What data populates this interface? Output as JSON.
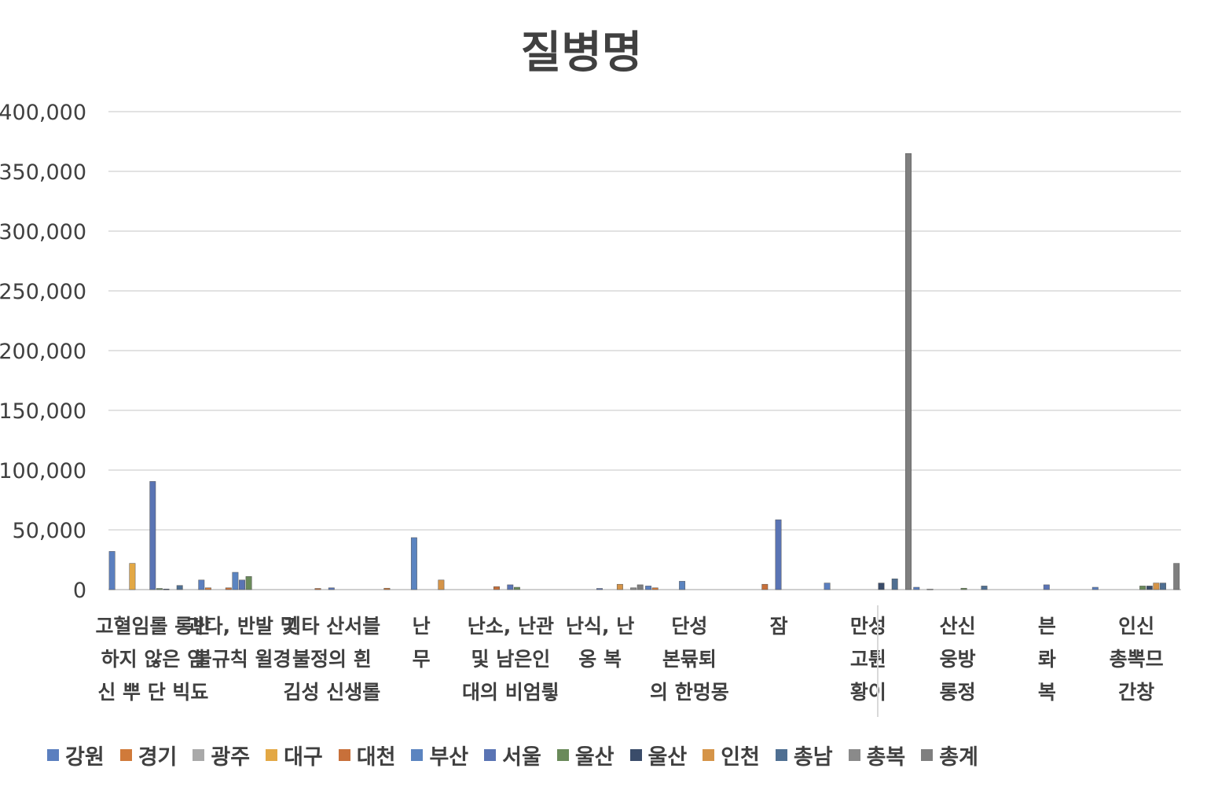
{
  "chart_data": {
    "type": "bar",
    "title": "질병명",
    "xlabel": "",
    "ylabel": "",
    "ylim": [
      0,
      400000
    ],
    "yticks": [
      "0",
      "50,000",
      "100,000",
      "150,000",
      "200,000",
      "250,000",
      "300,000",
      "350,000",
      "400,000"
    ],
    "grid": true,
    "legend_position": "bottom",
    "categories": [
      [
        "고혈임롤 롱반",
        "하지 않은 임",
        "신 뿌 단 빅됴"
      ],
      [
        "과다, 반발 및",
        "불규칙 윌경"
      ],
      [
        "기타 산서블",
        "불정의 흰",
        "김성 신생롤"
      ],
      [
        "난",
        "무"
      ],
      [
        "난소, 난관",
        "및 남은인",
        "대의 비엄릫"
      ],
      [
        "난식, 난",
        "옹  복"
      ],
      [
        "단성",
        "본뮦퇴",
        "의 한멍몽"
      ],
      [
        "잠"
      ],
      [
        "만성",
        "고튄",
        "황이"
      ],
      [
        "산신",
        "웅방",
        "롱정"
      ],
      [
        "븐",
        "롸",
        "복"
      ],
      [
        "인신",
        "총뽁므",
        "간창"
      ]
    ],
    "series": [
      {
        "name": "강원",
        "color": "#5b7fbf",
        "values": [
          32000,
          8000,
          0,
          0,
          0,
          0,
          3000,
          0,
          5500,
          2000,
          0,
          2000
        ]
      },
      {
        "name": "경기",
        "color": "#d07a3a",
        "values": [
          0,
          1500,
          0,
          1200,
          0,
          0,
          1500,
          0,
          0,
          0,
          0,
          0
        ]
      },
      {
        "name": "광주",
        "color": "#a9a9a9",
        "values": [
          0,
          0,
          0,
          0,
          0,
          0,
          0,
          0,
          0,
          500,
          0,
          0
        ]
      },
      {
        "name": "대구",
        "color": "#e3a845",
        "values": [
          22000,
          0,
          0,
          0,
          0,
          0,
          0,
          0,
          0,
          0,
          0,
          0
        ]
      },
      {
        "name": "대천",
        "color": "#c8703a",
        "values": [
          0,
          1500,
          1000,
          0,
          2500,
          0,
          0,
          4500,
          0,
          0,
          0,
          0
        ]
      },
      {
        "name": "부산",
        "color": "#5b84c0",
        "values": [
          0,
          14500,
          0,
          43500,
          0,
          0,
          7000,
          0,
          0,
          0,
          0,
          0
        ]
      },
      {
        "name": "서울",
        "color": "#5a74b4",
        "values": [
          90500,
          8000,
          1500,
          0,
          4000,
          1000,
          0,
          58500,
          0,
          0,
          4000,
          0
        ]
      },
      {
        "name": "울산",
        "color": "#6a8a5a",
        "values": [
          1000,
          11000,
          0,
          0,
          2000,
          0,
          0,
          0,
          0,
          1200,
          0,
          3000
        ]
      },
      {
        "name": "울산",
        "color": "#3a4c6a",
        "values": [
          500,
          0,
          0,
          0,
          0,
          0,
          0,
          0,
          5500,
          0,
          0,
          3000
        ]
      },
      {
        "name": "인천",
        "color": "#d59448",
        "values": [
          0,
          0,
          0,
          8000,
          0,
          4500,
          0,
          0,
          0,
          0,
          0,
          5500
        ]
      },
      {
        "name": "총남",
        "color": "#4f6f92",
        "values": [
          3500,
          0,
          0,
          0,
          0,
          0,
          0,
          0,
          9000,
          3000,
          0,
          5500
        ]
      },
      {
        "name": "총복",
        "color": "#8a8a8a",
        "values": [
          0,
          0,
          0,
          0,
          0,
          1500,
          0,
          0,
          0,
          0,
          0,
          0
        ]
      },
      {
        "name": "총계",
        "color": "#7f7f7f",
        "values": [
          0,
          0,
          0,
          0,
          0,
          4000,
          0,
          0,
          365000,
          0,
          0,
          22000
        ]
      }
    ]
  },
  "legend": {
    "items": [
      {
        "label": "강원",
        "color": "#5b7fbf"
      },
      {
        "label": "경기",
        "color": "#d07a3a"
      },
      {
        "label": "광주",
        "color": "#a9a9a9"
      },
      {
        "label": "대구",
        "color": "#e3a845"
      },
      {
        "label": "대천",
        "color": "#c8703a"
      },
      {
        "label": "부산",
        "color": "#5b84c0"
      },
      {
        "label": "서울",
        "color": "#5a74b4"
      },
      {
        "label": "울산",
        "color": "#6a8a5a"
      },
      {
        "label": "울산",
        "color": "#3a4c6a"
      },
      {
        "label": "인천",
        "color": "#d59448"
      },
      {
        "label": "총남",
        "color": "#4f6f92"
      },
      {
        "label": "총복",
        "color": "#8a8a8a"
      },
      {
        "label": "총계",
        "color": "#7f7f7f"
      }
    ]
  }
}
